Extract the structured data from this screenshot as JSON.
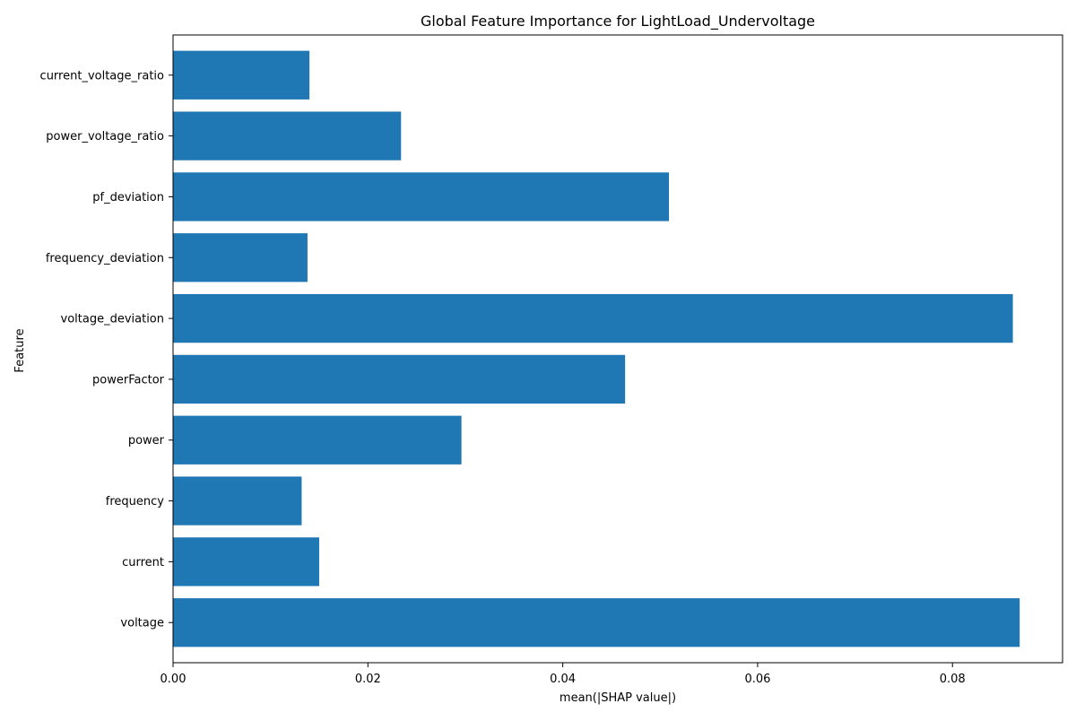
{
  "chart_data": {
    "type": "bar",
    "orientation": "horizontal",
    "title": "Global Feature Importance for LightLoad_Undervoltage",
    "xlabel": "mean(|SHAP value|)",
    "ylabel": "Feature",
    "categories": [
      "voltage",
      "current",
      "frequency",
      "power",
      "powerFactor",
      "voltage_deviation",
      "frequency_deviation",
      "pf_deviation",
      "power_voltage_ratio",
      "current_voltage_ratio"
    ],
    "values": [
      0.0869,
      0.015,
      0.0132,
      0.0296,
      0.0464,
      0.0862,
      0.0138,
      0.0509,
      0.0234,
      0.014
    ],
    "xlim": [
      0,
      0.0913
    ],
    "xticks": [
      0.0,
      0.02,
      0.04,
      0.06,
      0.08
    ],
    "xtick_labels": [
      "0.00",
      "0.02",
      "0.04",
      "0.06",
      "0.08"
    ],
    "grid": false,
    "bar_color": "#1f77b4"
  }
}
